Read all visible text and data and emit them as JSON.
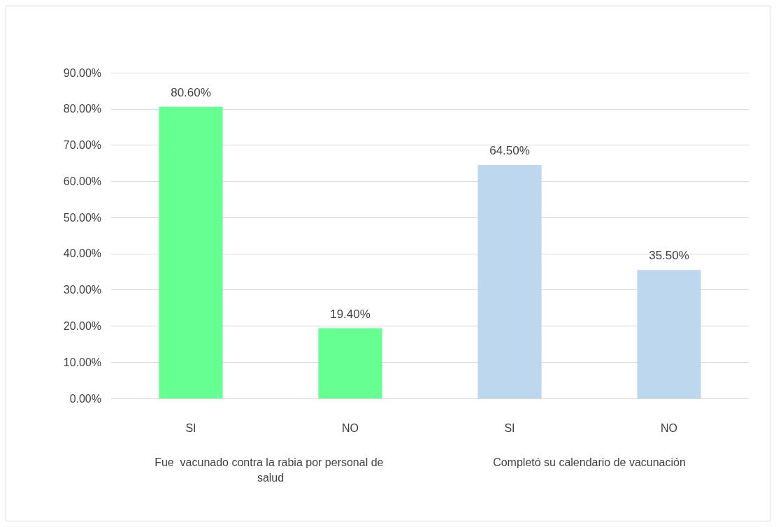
{
  "chart_data": {
    "type": "bar",
    "categories": [
      "SI",
      "NO",
      "SI",
      "NO"
    ],
    "values": [
      80.6,
      19.4,
      64.5,
      35.5
    ],
    "colors": [
      "#66ff91",
      "#66ff91",
      "#bdd7ee",
      "#bdd7ee"
    ],
    "value_labels": [
      "80.60%",
      "19.40%",
      "64.50%",
      "35.50%"
    ],
    "ylim": [
      0,
      90
    ],
    "yticks": [
      {
        "value": 0,
        "label": "0.00%"
      },
      {
        "value": 10,
        "label": "10.00%"
      },
      {
        "value": 20,
        "label": "20.00%"
      },
      {
        "value": 30,
        "label": "30.00%"
      },
      {
        "value": 40,
        "label": "40.00%"
      },
      {
        "value": 50,
        "label": "50.00%"
      },
      {
        "value": 60,
        "label": "60.00%"
      },
      {
        "value": 70,
        "label": "70.00%"
      },
      {
        "value": 80,
        "label": "80.00%"
      },
      {
        "value": 90,
        "label": "90.00%"
      }
    ],
    "grid": "y",
    "annotations": [
      "Fue  vacunado contra la rabia por personal de salud",
      "Completó su calendario de vacunación"
    ]
  }
}
